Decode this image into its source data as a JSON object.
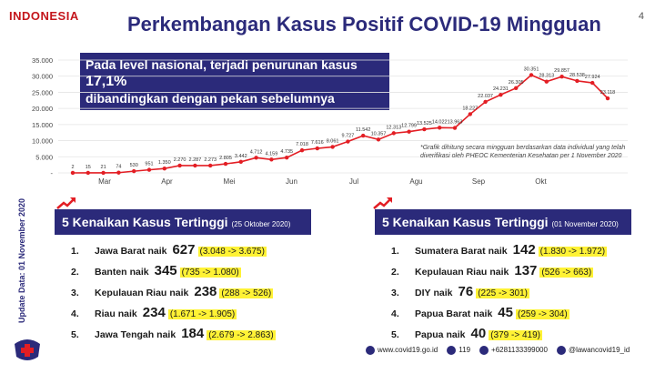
{
  "header": {
    "logo": "INDONESIA",
    "title": "Perkembangan Kasus Positif COVID-19 Mingguan",
    "page_number": "4"
  },
  "callout": {
    "text_a": "Pada level nasional, terjadi penurunan kasus ",
    "percent": "17,1%",
    "text_b": "dibandingkan dengan pekan sebelumnya"
  },
  "chart_data": {
    "type": "line",
    "y_ticks": [
      "35.000",
      "30.000",
      "25.000",
      "20.000",
      "15.000",
      "10.000",
      "5.000",
      "-"
    ],
    "ylim": [
      0,
      35000
    ],
    "x_month_labels": [
      "Mar",
      "Apr",
      "Mei",
      "Jun",
      "Jul",
      "Agu",
      "Sep",
      "Okt"
    ],
    "color": "#e31e24",
    "series": [
      {
        "values": [
          2,
          15,
          21,
          74,
          530,
          951,
          1350,
          2270,
          2287,
          2273,
          2805,
          3442,
          4712,
          4159,
          4735,
          7018,
          7616,
          8061,
          9727,
          11542,
          10357,
          12313,
          12799,
          13525,
          14022,
          13963,
          18227,
          22037,
          24231,
          26305,
          30351,
          28313,
          29857,
          28538,
          27924,
          23118
        ],
        "labels": [
          "2",
          "15",
          "21",
          "74",
          "530",
          "951",
          "1.350",
          "2.270",
          "2.287",
          "2.273",
          "2.805",
          "3.442",
          "4.712",
          "4.159",
          "4.735",
          "7.018",
          "7.616",
          "8.061",
          "9.727",
          "11.542",
          "10.357",
          "12.313",
          "12.799",
          "13.525",
          "14.022",
          "13.963",
          "18.227",
          "22.037",
          "24.231",
          "26.305",
          "30.351",
          "28.313",
          "29.857",
          "28.538",
          "27.924",
          "23.118"
        ]
      }
    ],
    "footnote": "*Grafik dihitung secara mingguan berdasarkan data individual yang telah diverifikasi oleh PHEOC Kementerian Kesehatan per 1 November 2020"
  },
  "sidebar": {
    "update_date": "Update Data: 01 November 2020"
  },
  "left_panel": {
    "title": "5 Kenaikan Kasus Tertinggi",
    "date": "(25 Oktober 2020)",
    "items": [
      {
        "rank": "1.",
        "region": "Jawa Barat",
        "word": "naik",
        "value": "627",
        "range": "(3.048 -> 3.675)"
      },
      {
        "rank": "2.",
        "region": "Banten",
        "word": "naik",
        "value": "345",
        "range": "(735 -> 1.080)"
      },
      {
        "rank": "3.",
        "region": "Kepulauan Riau",
        "word": "naik",
        "value": "238",
        "range": "(288 -> 526)"
      },
      {
        "rank": "4.",
        "region": "Riau",
        "word": "naik",
        "value": "234",
        "range": "(1.671 -> 1.905)"
      },
      {
        "rank": "5.",
        "region": "Jawa Tengah",
        "word": "naik",
        "value": "184",
        "range": "(2.679 -> 2.863)"
      }
    ]
  },
  "right_panel": {
    "title": "5 Kenaikan Kasus Tertinggi",
    "date": "(01 November 2020)",
    "items": [
      {
        "rank": "1.",
        "region": "Sumatera Barat",
        "word": "naik",
        "value": "142",
        "range": "(1.830 -> 1.972)"
      },
      {
        "rank": "2.",
        "region": "Kepulauan Riau",
        "word": "naik",
        "value": "137",
        "range": "(526 -> 663)"
      },
      {
        "rank": "3.",
        "region": "DIY",
        "word": "naik",
        "value": "76",
        "range": "(225 -> 301)"
      },
      {
        "rank": "4.",
        "region": "Papua Barat",
        "word": "naik",
        "value": "45",
        "range": "(259 -> 304)"
      },
      {
        "rank": "5.",
        "region": "Papua",
        "word": "naik",
        "value": "40",
        "range": "(379 -> 419)"
      }
    ]
  },
  "footer": {
    "website": "www.covid19.go.id",
    "hotline": "119",
    "whatsapp": "+6281133399000",
    "social": "@lawancovid19_id"
  }
}
